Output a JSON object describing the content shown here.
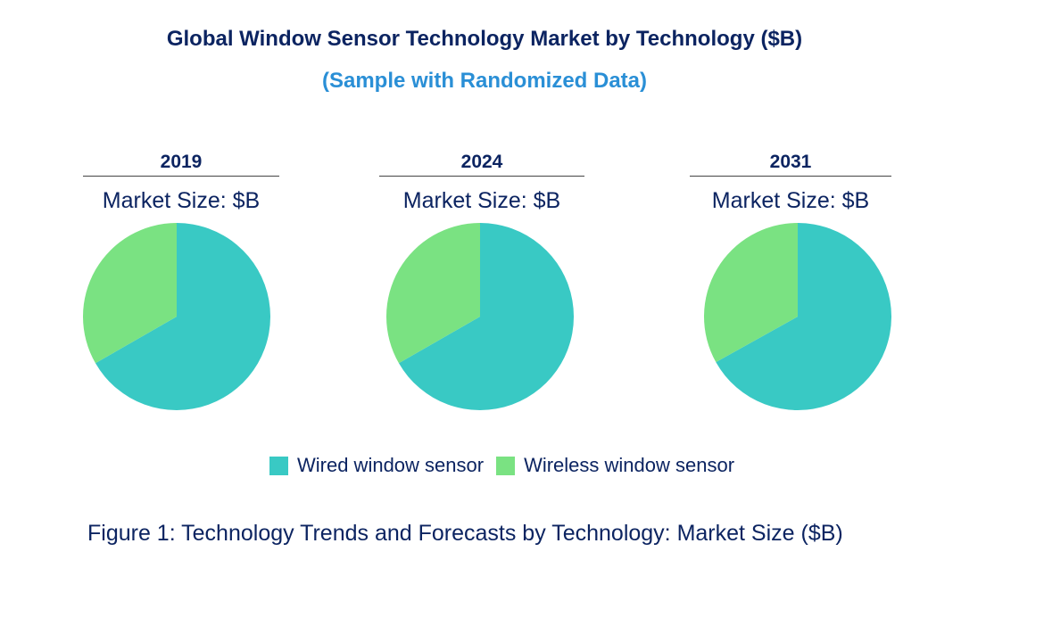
{
  "chart_data": {
    "type": "pie",
    "title": "Global Window Sensor Technology Market by Technology ($B)",
    "subtitle": "(Sample with Randomized Data)",
    "legend_position": "bottom",
    "categories": [
      "Wired window sensor",
      "Wireless window sensor"
    ],
    "colors": [
      "#39c9c4",
      "#7ae282"
    ],
    "pies": [
      {
        "year": "2019",
        "label": "Market Size: $B",
        "values": [
          66.7,
          33.3
        ]
      },
      {
        "year": "2024",
        "label": "Market Size: $B",
        "values": [
          66.7,
          33.3
        ]
      },
      {
        "year": "2031",
        "label": "Market Size: $B",
        "values": [
          66.9,
          33.1
        ]
      }
    ],
    "caption": "Figure 1: Technology Trends and Forecasts by Technology: Market Size ($B)"
  }
}
